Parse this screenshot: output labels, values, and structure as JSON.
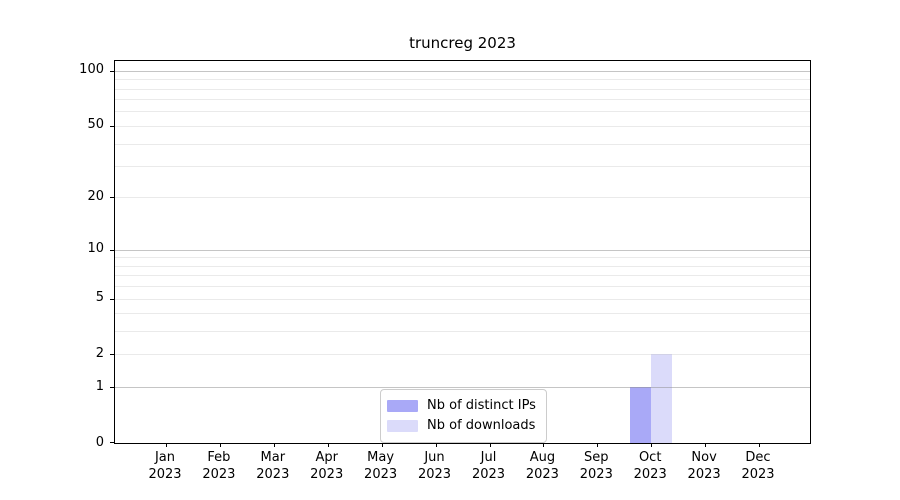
{
  "chart_data": {
    "type": "bar",
    "title": "truncreg 2023",
    "x": {
      "categories": [
        "Jan",
        "Feb",
        "Mar",
        "Apr",
        "May",
        "Jun",
        "Jul",
        "Aug",
        "Sep",
        "Oct",
        "Nov",
        "Dec"
      ],
      "year": "2023"
    },
    "series": [
      {
        "name": "Nb of distinct IPs",
        "color": "#a9a9f7",
        "values": [
          0,
          0,
          0,
          0,
          0,
          0,
          0,
          0,
          0,
          1,
          0,
          0
        ]
      },
      {
        "name": "Nb of downloads",
        "color": "#dbdbfa",
        "values": [
          0,
          0,
          0,
          0,
          0,
          0,
          0,
          0,
          0,
          2,
          0,
          0
        ]
      }
    ],
    "y_axis": {
      "scale": "log1p",
      "lim": [
        0,
        113
      ],
      "tick_values": [
        0,
        1,
        2,
        5,
        10,
        20,
        50,
        100
      ],
      "tick_labels": [
        "0",
        "1",
        "2",
        "5",
        "10",
        "20",
        "50",
        "100"
      ],
      "gridlines_major": [
        1,
        10,
        100
      ],
      "gridlines_minor": [
        2,
        3,
        4,
        5,
        6,
        7,
        8,
        9,
        20,
        30,
        40,
        50,
        60,
        70,
        80,
        90
      ]
    },
    "grid": true,
    "legend_position": "lower center"
  }
}
